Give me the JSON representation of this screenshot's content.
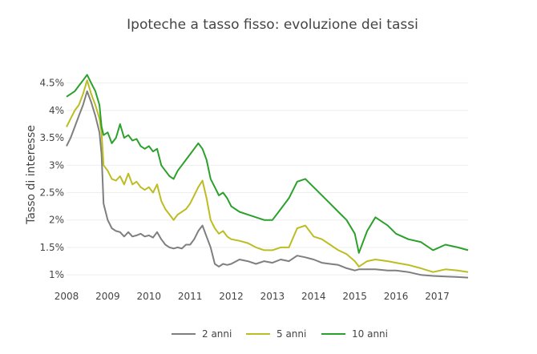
{
  "chart_data": {
    "type": "line",
    "title": "Ipoteche a tasso fisso: evoluzione dei tassi",
    "xlabel": "",
    "ylabel": "Tasso di interesse",
    "xlim": [
      2008.0,
      2017.75
    ],
    "ylim": [
      0.9,
      4.7
    ],
    "xticks": [
      "2008",
      "2009",
      "2010",
      "2011",
      "2012",
      "2013",
      "2014",
      "2015",
      "2016",
      "2017"
    ],
    "yticks": [
      "1%",
      "1.5%",
      "2%",
      "2.5%",
      "3%",
      "3.5%",
      "4%",
      "4.5%"
    ],
    "ytick_values": [
      1,
      1.5,
      2,
      2.5,
      3,
      3.5,
      4,
      4.5
    ],
    "grid": true,
    "legend": "bottom",
    "series": [
      {
        "name": "2 anni",
        "color": "#7f7f7f",
        "x": [
          2008.0,
          2008.1,
          2008.2,
          2008.3,
          2008.4,
          2008.5,
          2008.6,
          2008.7,
          2008.8,
          2008.85,
          2008.9,
          2009.0,
          2009.1,
          2009.2,
          2009.3,
          2009.4,
          2009.5,
          2009.6,
          2009.7,
          2009.8,
          2009.9,
          2010.0,
          2010.1,
          2010.2,
          2010.3,
          2010.4,
          2010.5,
          2010.6,
          2010.7,
          2010.8,
          2010.9,
          2011.0,
          2011.1,
          2011.2,
          2011.3,
          2011.4,
          2011.5,
          2011.6,
          2011.7,
          2011.8,
          2011.9,
          2012.0,
          2012.2,
          2012.4,
          2012.6,
          2012.8,
          2013.0,
          2013.2,
          2013.4,
          2013.6,
          2013.8,
          2014.0,
          2014.2,
          2014.4,
          2014.6,
          2014.8,
          2015.0,
          2015.1,
          2015.3,
          2015.5,
          2015.8,
          2016.0,
          2016.3,
          2016.6,
          2016.9,
          2017.2,
          2017.5,
          2017.75
        ],
        "y": [
          3.35,
          3.5,
          3.7,
          3.9,
          4.1,
          4.35,
          4.15,
          3.9,
          3.6,
          3.2,
          2.3,
          2.0,
          1.85,
          1.8,
          1.78,
          1.7,
          1.78,
          1.7,
          1.72,
          1.75,
          1.7,
          1.72,
          1.68,
          1.78,
          1.65,
          1.55,
          1.5,
          1.48,
          1.5,
          1.48,
          1.55,
          1.55,
          1.65,
          1.8,
          1.9,
          1.7,
          1.5,
          1.2,
          1.15,
          1.2,
          1.18,
          1.2,
          1.28,
          1.25,
          1.2,
          1.25,
          1.22,
          1.28,
          1.25,
          1.35,
          1.32,
          1.28,
          1.22,
          1.2,
          1.18,
          1.12,
          1.08,
          1.1,
          1.1,
          1.1,
          1.08,
          1.08,
          1.05,
          1.0,
          0.98,
          0.97,
          0.96,
          0.95
        ]
      },
      {
        "name": "5 anni",
        "color": "#bcbd22",
        "x": [
          2008.0,
          2008.1,
          2008.2,
          2008.3,
          2008.4,
          2008.5,
          2008.6,
          2008.7,
          2008.8,
          2008.85,
          2008.9,
          2009.0,
          2009.1,
          2009.2,
          2009.3,
          2009.4,
          2009.5,
          2009.6,
          2009.7,
          2009.8,
          2009.9,
          2010.0,
          2010.1,
          2010.2,
          2010.3,
          2010.4,
          2010.5,
          2010.6,
          2010.7,
          2010.8,
          2010.9,
          2011.0,
          2011.1,
          2011.2,
          2011.3,
          2011.4,
          2011.5,
          2011.6,
          2011.7,
          2011.8,
          2011.9,
          2012.0,
          2012.2,
          2012.4,
          2012.6,
          2012.8,
          2013.0,
          2013.2,
          2013.4,
          2013.6,
          2013.8,
          2014.0,
          2014.2,
          2014.4,
          2014.6,
          2014.8,
          2015.0,
          2015.1,
          2015.3,
          2015.5,
          2015.8,
          2016.0,
          2016.3,
          2016.6,
          2016.9,
          2017.2,
          2017.5,
          2017.75
        ],
        "y": [
          3.7,
          3.85,
          4.0,
          4.1,
          4.3,
          4.55,
          4.3,
          4.1,
          3.85,
          3.6,
          3.0,
          2.9,
          2.75,
          2.72,
          2.8,
          2.65,
          2.85,
          2.65,
          2.7,
          2.6,
          2.55,
          2.6,
          2.5,
          2.65,
          2.35,
          2.2,
          2.1,
          2.0,
          2.1,
          2.15,
          2.2,
          2.3,
          2.45,
          2.6,
          2.72,
          2.4,
          2.0,
          1.85,
          1.75,
          1.8,
          1.7,
          1.65,
          1.62,
          1.58,
          1.5,
          1.45,
          1.45,
          1.5,
          1.5,
          1.85,
          1.9,
          1.7,
          1.65,
          1.55,
          1.45,
          1.38,
          1.25,
          1.15,
          1.25,
          1.28,
          1.25,
          1.22,
          1.18,
          1.12,
          1.05,
          1.1,
          1.08,
          1.05
        ]
      },
      {
        "name": "10 anni",
        "color": "#2ca02c",
        "x": [
          2008.0,
          2008.1,
          2008.2,
          2008.3,
          2008.4,
          2008.5,
          2008.6,
          2008.7,
          2008.8,
          2008.85,
          2008.9,
          2009.0,
          2009.1,
          2009.2,
          2009.3,
          2009.4,
          2009.5,
          2009.6,
          2009.7,
          2009.8,
          2009.9,
          2010.0,
          2010.1,
          2010.2,
          2010.3,
          2010.4,
          2010.5,
          2010.6,
          2010.7,
          2010.8,
          2010.9,
          2011.0,
          2011.1,
          2011.2,
          2011.3,
          2011.4,
          2011.5,
          2011.6,
          2011.7,
          2011.8,
          2011.9,
          2012.0,
          2012.2,
          2012.4,
          2012.6,
          2012.8,
          2013.0,
          2013.2,
          2013.4,
          2013.6,
          2013.8,
          2014.0,
          2014.2,
          2014.4,
          2014.6,
          2014.8,
          2015.0,
          2015.1,
          2015.3,
          2015.5,
          2015.8,
          2016.0,
          2016.3,
          2016.6,
          2016.9,
          2017.2,
          2017.5,
          2017.75
        ],
        "y": [
          4.25,
          4.3,
          4.35,
          4.45,
          4.55,
          4.65,
          4.5,
          4.35,
          4.1,
          3.7,
          3.55,
          3.6,
          3.4,
          3.5,
          3.75,
          3.5,
          3.55,
          3.45,
          3.48,
          3.35,
          3.3,
          3.35,
          3.25,
          3.3,
          3.0,
          2.9,
          2.8,
          2.75,
          2.9,
          3.0,
          3.1,
          3.2,
          3.3,
          3.4,
          3.3,
          3.1,
          2.75,
          2.6,
          2.45,
          2.5,
          2.4,
          2.25,
          2.15,
          2.1,
          2.05,
          2.0,
          2.0,
          2.2,
          2.4,
          2.7,
          2.75,
          2.6,
          2.45,
          2.3,
          2.15,
          2.0,
          1.75,
          1.4,
          1.8,
          2.05,
          1.9,
          1.75,
          1.65,
          1.6,
          1.45,
          1.55,
          1.5,
          1.45
        ]
      }
    ]
  }
}
